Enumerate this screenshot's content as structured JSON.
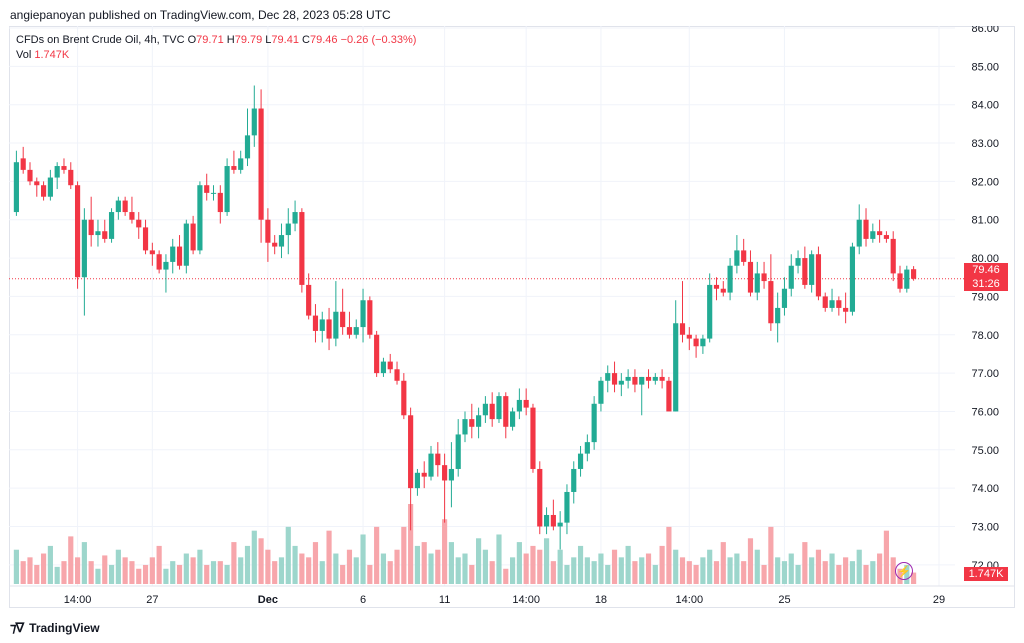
{
  "publisher_line": "angiepanoyan published on TradingView.com, Dec 28, 2023 05:28 UTC",
  "legend": {
    "symbol": "CFDs on Brent Crude Oil, 4h, TVC",
    "o_label": "O",
    "o_value": "79.71",
    "h_label": "H",
    "h_value": "79.79",
    "l_label": "L",
    "l_value": "79.41",
    "c_label": "C",
    "c_value": "79.46",
    "change": "−0.26 (−0.33%)",
    "vol_label": "Vol",
    "vol_value": "1.747K"
  },
  "price_tag": {
    "price": "79.46",
    "countdown": "31:26"
  },
  "volume_tag": "1.747K",
  "footer_brand": "TradingView",
  "colors": {
    "up": "#22ab94",
    "down": "#f23645",
    "vol_up": "#9dd6cc",
    "vol_down": "#f7a6ab",
    "grid": "#f0f3fa"
  },
  "icons": {
    "lightning": "lightning-icon",
    "logo": "tradingview-logo-icon"
  },
  "chart_data": {
    "type": "candlestick",
    "title": "CFDs on Brent Crude Oil, 4h, TVC",
    "ylim": [
      71.5,
      86.0
    ],
    "grid": true,
    "y_ticks": [
      "86.00",
      "85.00",
      "84.00",
      "83.00",
      "82.00",
      "81.00",
      "80.00",
      "79.00",
      "78.00",
      "77.00",
      "76.00",
      "75.00",
      "74.00",
      "73.00",
      "72.00"
    ],
    "x_ticks": [
      "14:00",
      "27",
      "Dec",
      "6",
      "11",
      "14:00",
      "18",
      "14:00",
      "25",
      "29"
    ],
    "last_price": 79.46,
    "candles": [
      [
        81.2,
        82.8,
        81.1,
        82.5
      ],
      [
        82.6,
        82.9,
        82.2,
        82.3
      ],
      [
        82.3,
        82.5,
        81.9,
        82.0
      ],
      [
        82.0,
        82.1,
        81.6,
        81.9
      ],
      [
        81.9,
        82.0,
        81.5,
        81.6
      ],
      [
        81.6,
        82.3,
        81.5,
        82.1
      ],
      [
        82.1,
        82.5,
        81.8,
        82.4
      ],
      [
        82.4,
        82.6,
        82.2,
        82.3
      ],
      [
        82.3,
        82.5,
        81.8,
        81.9
      ],
      [
        81.9,
        82.0,
        79.2,
        79.5
      ],
      [
        79.5,
        81.3,
        78.5,
        81.0
      ],
      [
        81.0,
        81.6,
        80.3,
        80.6
      ],
      [
        80.6,
        81.0,
        80.3,
        80.7
      ],
      [
        80.7,
        81.0,
        80.4,
        80.5
      ],
      [
        80.5,
        81.3,
        80.4,
        81.2
      ],
      [
        81.2,
        81.6,
        81.0,
        81.5
      ],
      [
        81.5,
        81.6,
        81.1,
        81.2
      ],
      [
        81.2,
        81.6,
        80.9,
        81.0
      ],
      [
        81.0,
        81.2,
        80.5,
        80.8
      ],
      [
        80.8,
        81.0,
        80.1,
        80.2
      ],
      [
        80.2,
        80.4,
        79.8,
        80.1
      ],
      [
        80.1,
        80.2,
        79.6,
        79.7
      ],
      [
        79.7,
        80.1,
        79.1,
        79.9
      ],
      [
        79.9,
        80.5,
        79.6,
        80.3
      ],
      [
        80.3,
        80.6,
        79.7,
        79.8
      ],
      [
        79.8,
        81.0,
        79.6,
        80.9
      ],
      [
        80.9,
        81.1,
        80.1,
        80.2
      ],
      [
        80.2,
        82.0,
        80.1,
        81.9
      ],
      [
        81.9,
        82.2,
        81.5,
        81.7
      ],
      [
        81.7,
        81.9,
        81.5,
        81.7
      ],
      [
        81.7,
        81.9,
        80.9,
        81.2
      ],
      [
        81.2,
        82.6,
        81.1,
        82.4
      ],
      [
        82.4,
        82.8,
        82.2,
        82.3
      ],
      [
        82.3,
        82.8,
        82.2,
        82.6
      ],
      [
        82.6,
        83.9,
        82.4,
        83.2
      ],
      [
        83.2,
        84.5,
        82.9,
        83.9
      ],
      [
        83.9,
        84.4,
        80.4,
        81.0
      ],
      [
        81.0,
        81.3,
        79.9,
        80.4
      ],
      [
        80.4,
        80.6,
        80.1,
        80.3
      ],
      [
        80.3,
        80.9,
        80.0,
        80.6
      ],
      [
        80.6,
        81.3,
        80.1,
        80.9
      ],
      [
        80.9,
        81.5,
        80.7,
        81.2
      ],
      [
        81.2,
        81.3,
        79.1,
        79.3
      ],
      [
        79.3,
        79.6,
        78.4,
        78.5
      ],
      [
        78.5,
        78.8,
        77.8,
        78.1
      ],
      [
        78.1,
        78.6,
        77.8,
        78.4
      ],
      [
        78.4,
        78.7,
        77.6,
        77.9
      ],
      [
        77.9,
        79.4,
        77.7,
        78.6
      ],
      [
        78.6,
        79.2,
        78.0,
        78.2
      ],
      [
        78.2,
        78.6,
        77.9,
        78.0
      ],
      [
        78.0,
        78.4,
        77.9,
        78.2
      ],
      [
        78.2,
        79.2,
        77.8,
        78.9
      ],
      [
        78.9,
        79.0,
        77.9,
        78.0
      ],
      [
        78.0,
        78.1,
        76.9,
        77.0
      ],
      [
        77.0,
        77.4,
        76.9,
        77.3
      ],
      [
        77.3,
        77.5,
        77.0,
        77.1
      ],
      [
        77.1,
        77.3,
        76.7,
        76.8
      ],
      [
        76.8,
        77.0,
        75.8,
        75.9
      ],
      [
        75.9,
        76.1,
        72.9,
        74.0
      ],
      [
        74.0,
        74.5,
        73.8,
        74.4
      ],
      [
        74.4,
        74.7,
        74.0,
        74.3
      ],
      [
        74.3,
        75.1,
        74.2,
        74.9
      ],
      [
        74.9,
        75.2,
        74.3,
        74.6
      ],
      [
        74.6,
        74.9,
        73.1,
        74.2
      ],
      [
        74.2,
        75.2,
        73.5,
        74.5
      ],
      [
        74.5,
        75.8,
        74.3,
        75.4
      ],
      [
        75.4,
        76.0,
        75.2,
        75.8
      ],
      [
        75.8,
        76.2,
        75.3,
        75.6
      ],
      [
        75.6,
        76.1,
        75.3,
        75.9
      ],
      [
        75.9,
        76.4,
        75.7,
        76.2
      ],
      [
        76.2,
        76.5,
        75.6,
        75.8
      ],
      [
        75.8,
        76.5,
        75.7,
        76.4
      ],
      [
        76.4,
        76.5,
        75.3,
        75.6
      ],
      [
        75.6,
        76.1,
        75.5,
        76.0
      ],
      [
        76.0,
        76.6,
        75.8,
        76.3
      ],
      [
        76.3,
        76.6,
        75.9,
        76.1
      ],
      [
        76.1,
        76.2,
        74.4,
        74.5
      ],
      [
        74.5,
        74.7,
        72.8,
        73.0
      ],
      [
        73.0,
        73.5,
        72.8,
        73.3
      ],
      [
        73.3,
        73.7,
        72.9,
        73.0
      ],
      [
        73.0,
        73.4,
        72.4,
        73.1
      ],
      [
        73.1,
        74.1,
        72.8,
        73.9
      ],
      [
        73.9,
        74.7,
        73.6,
        74.5
      ],
      [
        74.5,
        75.1,
        74.3,
        74.9
      ],
      [
        74.9,
        75.4,
        74.7,
        75.2
      ],
      [
        75.2,
        76.4,
        75.0,
        76.2
      ],
      [
        76.2,
        76.9,
        76.0,
        76.8
      ],
      [
        76.8,
        77.2,
        76.5,
        77.0
      ],
      [
        77.0,
        77.3,
        76.5,
        76.7
      ],
      [
        76.7,
        77.0,
        76.4,
        76.8
      ],
      [
        76.8,
        77.1,
        76.6,
        76.9
      ],
      [
        76.9,
        77.1,
        76.5,
        76.7
      ],
      [
        76.7,
        76.9,
        75.9,
        76.9
      ],
      [
        76.9,
        77.1,
        76.6,
        76.8
      ],
      [
        76.8,
        77.0,
        76.7,
        76.9
      ],
      [
        76.9,
        77.1,
        76.6,
        76.8
      ],
      [
        76.8,
        76.9,
        76.1,
        76.0
      ],
      [
        76.0,
        78.9,
        76.0,
        78.3
      ],
      [
        78.3,
        79.4,
        77.8,
        78.0
      ],
      [
        78.0,
        78.2,
        77.6,
        77.9
      ],
      [
        77.9,
        78.0,
        77.4,
        77.7
      ],
      [
        77.7,
        78.0,
        77.5,
        77.9
      ],
      [
        77.9,
        79.6,
        77.8,
        79.3
      ],
      [
        79.3,
        79.5,
        78.9,
        79.2
      ],
      [
        79.2,
        79.4,
        79.0,
        79.1
      ],
      [
        79.1,
        80.0,
        78.9,
        79.8
      ],
      [
        79.8,
        80.6,
        79.6,
        80.2
      ],
      [
        80.2,
        80.5,
        79.8,
        79.9
      ],
      [
        79.9,
        80.2,
        79.0,
        79.1
      ],
      [
        79.1,
        79.9,
        78.9,
        79.6
      ],
      [
        79.6,
        79.9,
        79.2,
        79.4
      ],
      [
        79.4,
        80.1,
        78.1,
        78.3
      ],
      [
        78.3,
        79.1,
        77.8,
        78.7
      ],
      [
        78.7,
        79.5,
        78.5,
        79.2
      ],
      [
        79.2,
        80.1,
        79.0,
        79.8
      ],
      [
        79.8,
        80.2,
        79.6,
        80.0
      ],
      [
        80.0,
        80.3,
        79.2,
        79.3
      ],
      [
        79.3,
        80.2,
        79.1,
        80.1
      ],
      [
        80.1,
        80.3,
        78.9,
        79.0
      ],
      [
        79.0,
        79.1,
        78.6,
        78.7
      ],
      [
        78.7,
        79.2,
        78.6,
        78.9
      ],
      [
        78.9,
        79.0,
        78.5,
        78.7
      ],
      [
        78.7,
        79.1,
        78.3,
        78.6
      ],
      [
        78.6,
        80.4,
        78.5,
        80.3
      ],
      [
        80.3,
        81.4,
        80.1,
        81.0
      ],
      [
        81.0,
        81.3,
        80.3,
        80.5
      ],
      [
        80.5,
        80.9,
        80.4,
        80.7
      ],
      [
        80.7,
        81.0,
        80.4,
        80.6
      ],
      [
        80.6,
        80.7,
        80.4,
        80.5
      ],
      [
        80.5,
        80.7,
        79.4,
        79.6
      ],
      [
        79.6,
        79.8,
        79.1,
        79.2
      ],
      [
        79.2,
        79.8,
        79.1,
        79.7
      ],
      [
        79.71,
        79.79,
        79.41,
        79.46
      ]
    ],
    "volume": [
      18,
      12,
      14,
      10,
      16,
      20,
      9,
      12,
      25,
      14,
      22,
      12,
      8,
      15,
      10,
      18,
      14,
      12,
      8,
      10,
      14,
      20,
      8,
      12,
      10,
      16,
      14,
      18,
      10,
      12,
      12,
      10,
      22,
      14,
      20,
      28,
      24,
      18,
      12,
      14,
      30,
      20,
      16,
      14,
      22,
      12,
      28,
      16,
      10,
      18,
      14,
      26,
      10,
      30,
      16,
      12,
      18,
      30,
      42,
      20,
      22,
      16,
      18,
      34,
      22,
      14,
      16,
      10,
      24,
      18,
      12,
      26,
      8,
      14,
      22,
      16,
      20,
      18,
      24,
      12,
      18,
      10,
      14,
      20,
      14,
      12,
      16,
      10,
      18,
      14,
      20,
      12,
      14,
      16,
      10,
      20,
      30,
      18,
      14,
      12,
      10,
      14,
      18,
      12,
      22,
      14,
      16,
      12,
      24,
      18,
      10,
      30,
      14,
      12,
      16,
      10,
      22,
      14,
      18,
      12,
      16,
      10,
      14,
      12,
      18,
      10,
      12,
      16,
      28,
      14,
      8,
      10,
      6
    ]
  }
}
